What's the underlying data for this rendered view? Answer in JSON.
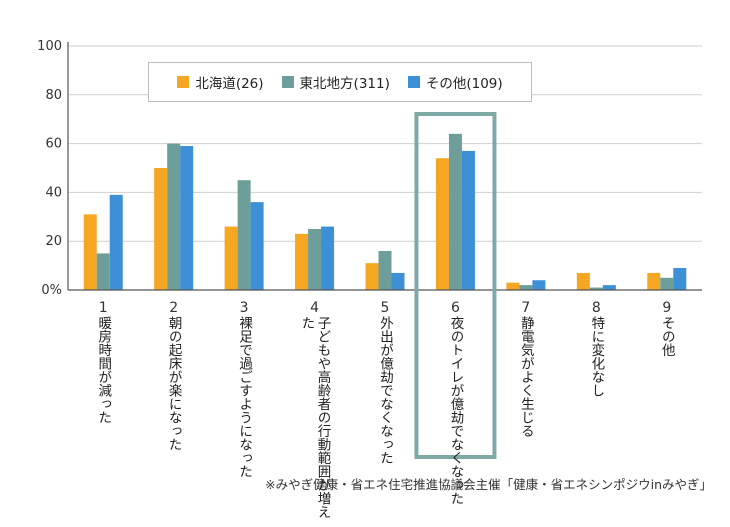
{
  "chart_data": {
    "type": "bar",
    "categories": [
      {
        "num": "1",
        "label": "暖房時間が減った"
      },
      {
        "num": "2",
        "label": "朝の起床が楽になった"
      },
      {
        "num": "3",
        "label": "裸足で過ごすようになった"
      },
      {
        "num": "4",
        "label": "子どもや高齢者の行動範囲が増えた"
      },
      {
        "num": "5",
        "label": "外出が億劫でなくなった"
      },
      {
        "num": "6",
        "label": "夜のトイレが億劫でなくなった"
      },
      {
        "num": "7",
        "label": "静電気がよく生じる"
      },
      {
        "num": "8",
        "label": "特に変化なし"
      },
      {
        "num": "9",
        "label": "その他"
      }
    ],
    "series": [
      {
        "name": "北海道(26)",
        "color": "#f5a623",
        "values": [
          31,
          50,
          26,
          23,
          11,
          54,
          3,
          7,
          7
        ]
      },
      {
        "name": "東北地方(311)",
        "color": "#6e9e99",
        "values": [
          15,
          60,
          45,
          25,
          16,
          64,
          2,
          1,
          5
        ]
      },
      {
        "name": "その他(109)",
        "color": "#3d8fd6",
        "values": [
          39,
          59,
          36,
          26,
          7,
          57,
          4,
          2,
          9
        ]
      }
    ],
    "yticks": [
      "0%",
      "20",
      "40",
      "60",
      "80",
      "100"
    ],
    "ylim": [
      0,
      100
    ],
    "highlight_category": 5,
    "highlight_color": "#7fa9a6"
  },
  "source_note": "※みやぎ健康・省エネ住宅推進協議会主催「健康・省エネシンポジウinみやぎ」"
}
